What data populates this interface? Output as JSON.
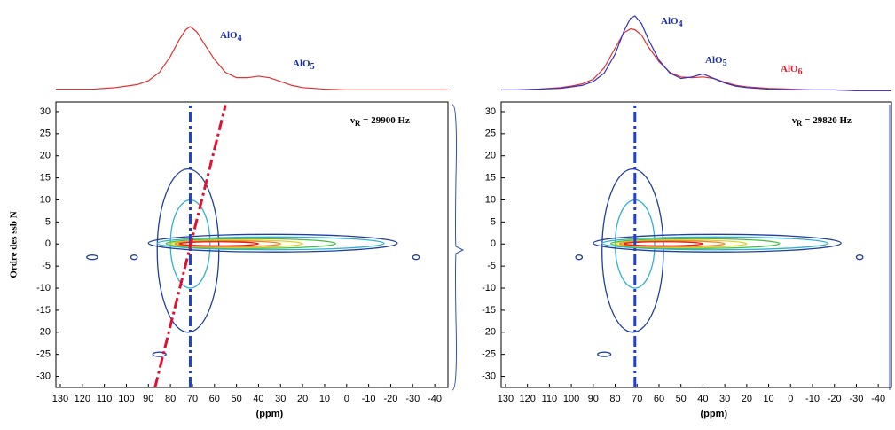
{
  "chart_data": [
    {
      "type": "contour",
      "xlabel": "(ppm)",
      "ylabel": "Ordre des ssb N",
      "xlim": [
        132,
        -46
      ],
      "ylim": [
        -32.5,
        32.2
      ],
      "xticks": [
        130,
        120,
        110,
        100,
        90,
        80,
        70,
        60,
        50,
        40,
        30,
        20,
        10,
        0,
        -10,
        -20,
        -30,
        -40
      ],
      "yticks": [
        -30,
        -25,
        -20,
        -15,
        -10,
        -5,
        0,
        5,
        10,
        15,
        20,
        25,
        30
      ],
      "rotor": {
        "symbol": "ν",
        "subscript": "R",
        "text": " = 29900 Hz"
      },
      "annotations": [
        {
          "text": "AlO",
          "subscript": "4",
          "color": "#1a2fb0"
        },
        {
          "text": "AlO",
          "subscript": "5",
          "color": "#1a2fb0"
        }
      ],
      "projection": {
        "ylim": [
          0,
          100
        ],
        "series": [
          {
            "color": "#e03030",
            "x": [
              132,
              125,
              115,
              105,
              100,
              95,
              90,
              85,
              80,
              76,
              73,
              71,
              68,
              65,
              60,
              55,
              50,
              45,
              40,
              35,
              30,
              25,
              20,
              10,
              0,
              -10,
              -20,
              -30,
              -46
            ],
            "values": [
              4,
              4,
              4,
              6,
              8,
              10,
              15,
              26,
              47,
              69,
              82,
              86,
              79,
              65,
              43,
              26,
              19,
              19,
              21,
              19,
              14,
              9,
              6,
              4,
              3,
              3,
              3,
              3,
              3
            ]
          }
        ]
      },
      "contours": [
        {
          "color": "#1f3fa0",
          "x": [
            86,
            58
          ],
          "y": [
            -20,
            17
          ]
        },
        {
          "color": "#30b0d0",
          "x": [
            80,
            62
          ],
          "y": [
            -10,
            10
          ]
        },
        {
          "color": "#1f3fa0",
          "x": [
            90,
            -23
          ],
          "y": [
            -1.8,
            2.2
          ]
        },
        {
          "color": "#30b0d0",
          "x": [
            86,
            -17
          ],
          "y": [
            -1.3,
            1.6
          ]
        },
        {
          "color": "#40c040",
          "x": [
            82,
            5
          ],
          "y": [
            -1,
            1.2
          ]
        },
        {
          "color": "#e0d020",
          "x": [
            80,
            20
          ],
          "y": [
            -0.8,
            0.9
          ]
        },
        {
          "color": "#f08020",
          "x": [
            78,
            30
          ],
          "y": [
            -0.6,
            0.7
          ]
        },
        {
          "color": "#e02020",
          "x": [
            76,
            40
          ],
          "y": [
            -0.4,
            0.5
          ]
        },
        {
          "color": "#1f3fa0",
          "x": [
            98,
            95
          ],
          "y": [
            -3.5,
            -2.5
          ]
        },
        {
          "color": "#1f3fa0",
          "x": [
            118,
            113
          ],
          "y": [
            -3.5,
            -2.5
          ]
        },
        {
          "color": "#1f3fa0",
          "x": [
            88,
            82
          ],
          "y": [
            -25.5,
            -24.5
          ]
        },
        {
          "color": "#1f3fa0",
          "x": [
            -30,
            -33
          ],
          "y": [
            -3.5,
            -2.5
          ]
        }
      ],
      "reference_lines": [
        {
          "color": "#2040d0",
          "style": "dash-dot",
          "x": [
            71,
            71
          ],
          "y": [
            -32.5,
            32.2
          ]
        },
        {
          "color": "#e01030",
          "style": "dash-dot",
          "x": [
            87,
            55
          ],
          "y": [
            -32.5,
            31.5
          ]
        }
      ]
    },
    {
      "type": "contour",
      "xlabel": "(ppm)",
      "xlim": [
        132,
        -46
      ],
      "ylim": [
        -32.5,
        32.2
      ],
      "xticks": [
        130,
        120,
        110,
        100,
        90,
        80,
        70,
        60,
        50,
        40,
        30,
        20,
        10,
        0,
        -10,
        -20,
        -30,
        -40
      ],
      "yticks": [
        -30,
        -25,
        -20,
        -15,
        -10,
        -5,
        0,
        5,
        10,
        15,
        20,
        25,
        30
      ],
      "rotor": {
        "symbol": "ν",
        "subscript": "R",
        "text": " = 29820 Hz"
      },
      "annotations": [
        {
          "text": "AlO",
          "subscript": "4",
          "color": "#1a2fb0"
        },
        {
          "text": "AlO",
          "subscript": "5",
          "color": "#1a2fb0"
        },
        {
          "text": "AlO",
          "subscript": "6",
          "color": "#e02030"
        }
      ],
      "projection": {
        "ylim": [
          0,
          100
        ],
        "series": [
          {
            "color": "#e03030",
            "x": [
              132,
              125,
              115,
              105,
              100,
              95,
              90,
              85,
              80,
              76,
              73,
              71,
              68,
              65,
              60,
              55,
              50,
              45,
              40,
              35,
              30,
              25,
              20,
              10,
              0,
              -10,
              -20,
              -30,
              -46
            ],
            "values": [
              3,
              3,
              4,
              6,
              8,
              11,
              17,
              32,
              58,
              78,
              83,
              82,
              75,
              60,
              40,
              26,
              20,
              19,
              20,
              18,
              13,
              9,
              7,
              5,
              4,
              3,
              3,
              2,
              2
            ]
          },
          {
            "color": "#3030c0",
            "x": [
              132,
              125,
              115,
              105,
              100,
              95,
              90,
              85,
              80,
              76,
              73,
              71,
              68,
              65,
              60,
              55,
              50,
              45,
              40,
              35,
              30,
              25,
              20,
              10,
              0,
              -10,
              -20,
              -30,
              -46
            ],
            "values": [
              3,
              3,
              4,
              5,
              7,
              9,
              14,
              25,
              50,
              80,
              97,
              100,
              90,
              70,
              42,
              25,
              18,
              20,
              24,
              18,
              12,
              8,
              6,
              4,
              3,
              3,
              3,
              2,
              2
            ]
          }
        ]
      },
      "contours": [
        {
          "color": "#1f3fa0",
          "x": [
            86,
            58
          ],
          "y": [
            -20,
            17
          ]
        },
        {
          "color": "#30b0d0",
          "x": [
            80,
            62
          ],
          "y": [
            -10,
            10
          ]
        },
        {
          "color": "#1f3fa0",
          "x": [
            90,
            -23
          ],
          "y": [
            -1.8,
            2.2
          ]
        },
        {
          "color": "#30b0d0",
          "x": [
            86,
            -17
          ],
          "y": [
            -1.3,
            1.6
          ]
        },
        {
          "color": "#40c040",
          "x": [
            82,
            5
          ],
          "y": [
            -1,
            1.2
          ]
        },
        {
          "color": "#e0d020",
          "x": [
            80,
            20
          ],
          "y": [
            -0.8,
            0.9
          ]
        },
        {
          "color": "#f08020",
          "x": [
            78,
            30
          ],
          "y": [
            -0.6,
            0.7
          ]
        },
        {
          "color": "#e02020",
          "x": [
            76,
            40
          ],
          "y": [
            -0.4,
            0.5
          ]
        },
        {
          "color": "#1f3fa0",
          "x": [
            98,
            95
          ],
          "y": [
            -3.5,
            -2.5
          ]
        },
        {
          "color": "#1f3fa0",
          "x": [
            88,
            82
          ],
          "y": [
            -25.5,
            -24.5
          ]
        },
        {
          "color": "#1f3fa0",
          "x": [
            -30,
            -33
          ],
          "y": [
            -3.5,
            -2.5
          ]
        }
      ],
      "reference_lines": [
        {
          "color": "#2040d0",
          "style": "dash-dot",
          "x": [
            71,
            71
          ],
          "y": [
            -32.5,
            32.2
          ]
        }
      ]
    }
  ]
}
